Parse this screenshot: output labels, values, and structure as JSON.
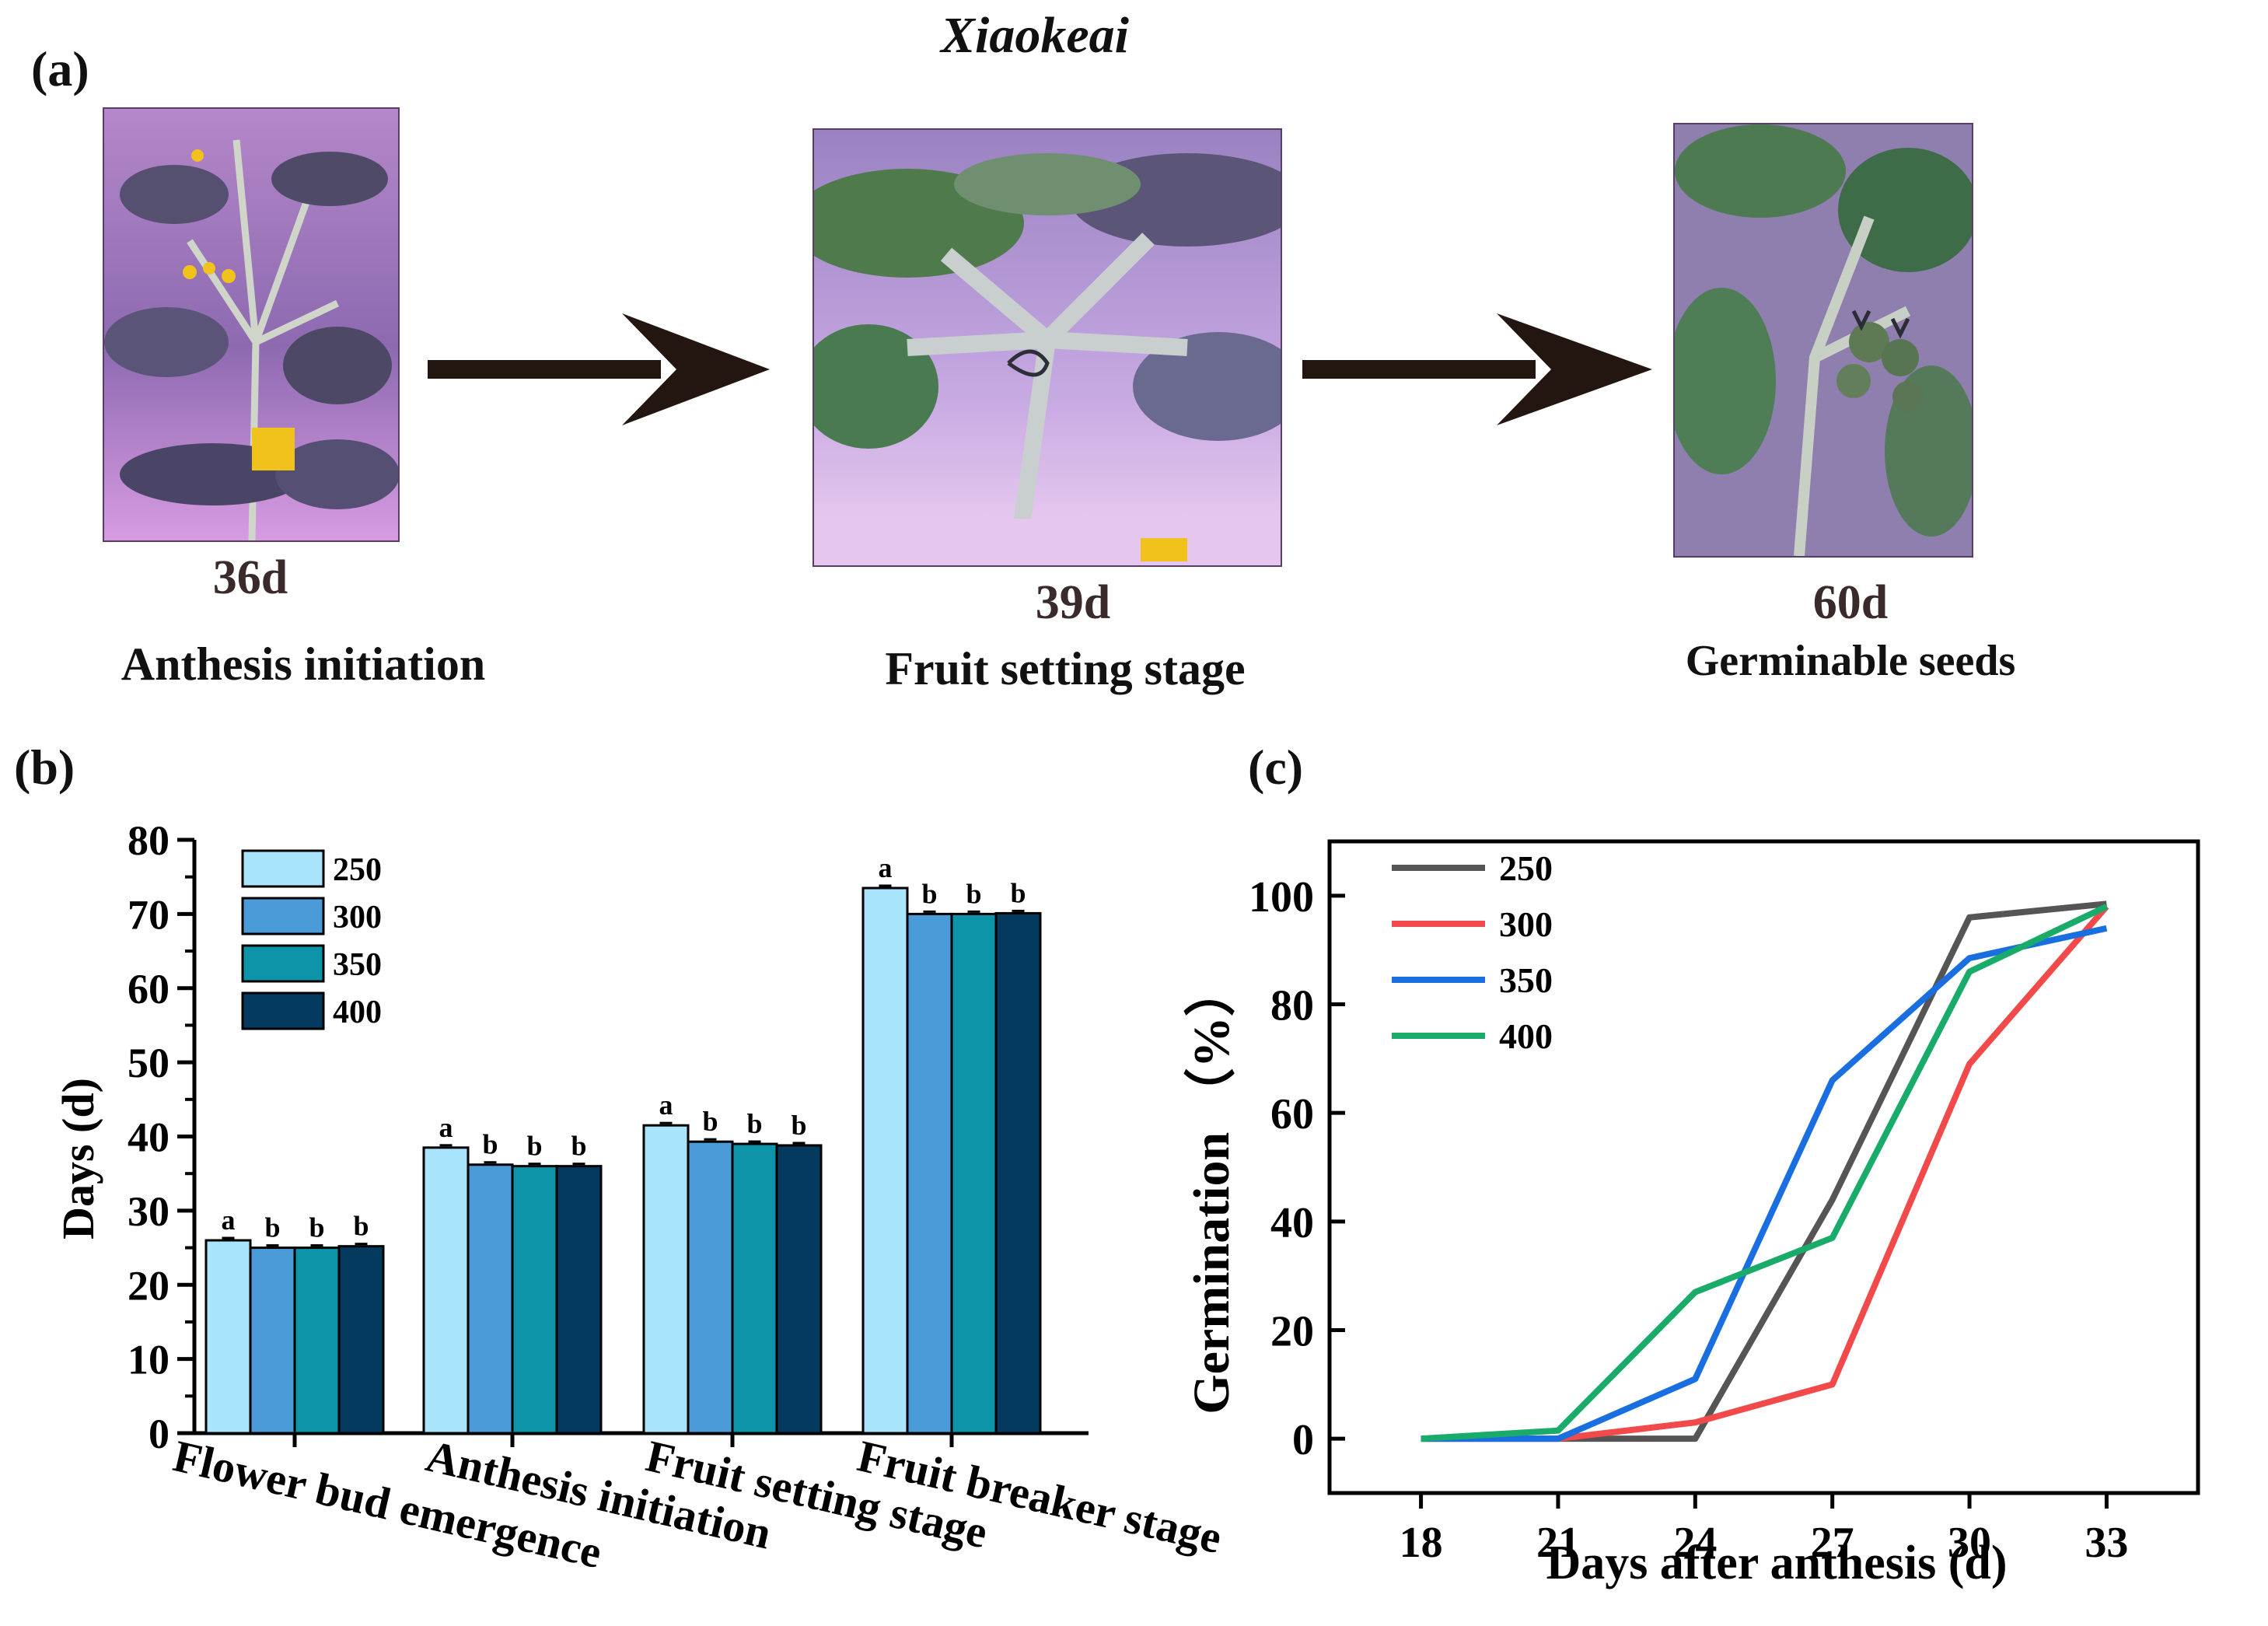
{
  "title": "Xiaokeai",
  "panel_labels": {
    "a": "(a)",
    "b": "(b)",
    "c": "(c)"
  },
  "stages_a": [
    {
      "day": "36d",
      "label": "Anthesis initiation",
      "photo": "tomato-plant-flowering-photo"
    },
    {
      "day": "39d",
      "label": "Fruit setting stage",
      "photo": "tomato-plant-fruit-set-photo"
    },
    {
      "day": "60d",
      "label": "Germinable seeds",
      "photo": "tomato-plant-green-fruit-photo"
    }
  ],
  "colors": {
    "bar_250": "#a8e4fb",
    "bar_300": "#4b9bd9",
    "bar_350": "#0d94a8",
    "bar_400": "#053a5f",
    "line_250": "#555555",
    "line_300": "#f24a4a",
    "line_350": "#1a6fe0",
    "line_400": "#19ab6a",
    "arrow": "#231510"
  },
  "chart_data": [
    {
      "type": "bar",
      "ylabel": "Days (d)",
      "ylim": [
        0,
        80
      ],
      "yticks": [
        "0",
        "10",
        "20",
        "30",
        "40",
        "50",
        "60",
        "70",
        "80"
      ],
      "categories": [
        "Flower bud emergence",
        "Anthesis initiation",
        "Fruit setting stage",
        "Fruit breaker stage"
      ],
      "legend_position": "top-left",
      "series": [
        {
          "name": "250",
          "values": [
            26.0,
            38.5,
            41.5,
            73.5
          ],
          "letters": [
            "a",
            "a",
            "a",
            "a"
          ]
        },
        {
          "name": "300",
          "values": [
            25.0,
            36.2,
            39.3,
            70.0
          ],
          "letters": [
            "b",
            "b",
            "b",
            "b"
          ]
        },
        {
          "name": "350",
          "values": [
            25.0,
            36.0,
            39.0,
            70.0
          ],
          "letters": [
            "b",
            "b",
            "b",
            "b"
          ]
        },
        {
          "name": "400",
          "values": [
            25.2,
            36.0,
            38.8,
            70.1
          ],
          "letters": [
            "b",
            "b",
            "b",
            "b"
          ]
        }
      ]
    },
    {
      "type": "line",
      "xlabel": "Days after anthesis (d)",
      "ylabel": "Germination （%）",
      "x": [
        18,
        21,
        24,
        27,
        30,
        33
      ],
      "xticks": [
        "18",
        "21",
        "24",
        "27",
        "30",
        "33"
      ],
      "xlim": [
        16,
        35
      ],
      "ylim": [
        -10,
        110
      ],
      "yticks": [
        "0",
        "20",
        "40",
        "60",
        "80",
        "100"
      ],
      "legend_position": "top-left",
      "series": [
        {
          "name": "250",
          "values": [
            0,
            0,
            0,
            44,
            96,
            98.5
          ]
        },
        {
          "name": "300",
          "values": [
            0,
            0,
            3,
            10,
            69,
            98
          ]
        },
        {
          "name": "350",
          "values": [
            0,
            0,
            11,
            66,
            88.5,
            94
          ]
        },
        {
          "name": "400",
          "values": [
            0,
            1.5,
            27,
            37,
            86,
            98
          ]
        }
      ]
    }
  ]
}
